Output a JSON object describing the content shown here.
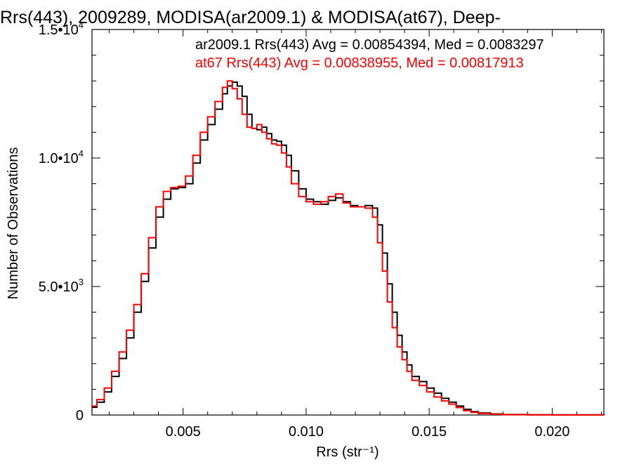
{
  "chart_data": {
    "type": "line",
    "step": true,
    "title": "Rrs(443), 2009289, MODISA(ar2009.1) & MODISA(at67), Deep-",
    "xlabel": "Rrs (str⁻¹)",
    "ylabel": "Number of Observations",
    "xlim": [
      0.0013,
      0.0221
    ],
    "ylim": [
      0,
      15000
    ],
    "xticks": [
      0.005,
      0.01,
      0.015,
      0.02
    ],
    "xtick_labels": [
      "0.005",
      "0.010",
      "0.015",
      "0.020"
    ],
    "ytick_labels": [
      {
        "value": 0,
        "label": "0"
      },
      {
        "value": 5000,
        "label": "5.0•10",
        "sup": "3"
      },
      {
        "value": 10000,
        "label": "1.0•10",
        "sup": "4"
      },
      {
        "value": 15000,
        "label": "1.5•10",
        "sup": "4"
      }
    ],
    "grid": false,
    "legend_position": "top-right",
    "series": [
      {
        "name": "ar2009.1 Rrs(443) Avg = 0.00854394, Med = 0.0083297",
        "color": "#000000",
        "x": [
          0.0013,
          0.0015,
          0.0018,
          0.0021,
          0.0024,
          0.0027,
          0.003,
          0.0033,
          0.0036,
          0.0039,
          0.0042,
          0.0045,
          0.0048,
          0.0051,
          0.0054,
          0.0057,
          0.006,
          0.0063,
          0.0066,
          0.0068,
          0.007,
          0.0072,
          0.0074,
          0.0076,
          0.0078,
          0.008,
          0.0082,
          0.0084,
          0.0086,
          0.0088,
          0.009,
          0.0092,
          0.0094,
          0.0097,
          0.01,
          0.0103,
          0.0106,
          0.0109,
          0.0112,
          0.0115,
          0.0118,
          0.0121,
          0.0124,
          0.0127,
          0.0129,
          0.0131,
          0.0133,
          0.0135,
          0.0137,
          0.0139,
          0.0141,
          0.0143,
          0.0146,
          0.0149,
          0.0152,
          0.0155,
          0.0158,
          0.0161,
          0.0164,
          0.0167,
          0.017,
          0.0175,
          0.018,
          0.019,
          0.02,
          0.0221
        ],
        "y": [
          300,
          500,
          900,
          1500,
          2200,
          3000,
          4000,
          5200,
          6500,
          7700,
          8400,
          8800,
          8850,
          9000,
          9800,
          10700,
          11300,
          11900,
          12500,
          12800,
          12950,
          12800,
          12400,
          11700,
          11150,
          11100,
          11200,
          10950,
          10700,
          10650,
          10500,
          10100,
          9500,
          8800,
          8400,
          8300,
          8200,
          8350,
          8450,
          8300,
          8150,
          8100,
          8150,
          8050,
          7400,
          6300,
          5100,
          4000,
          3100,
          2450,
          1950,
          1500,
          1300,
          1050,
          850,
          650,
          500,
          350,
          220,
          130,
          80,
          40,
          20,
          10,
          5,
          3
        ]
      },
      {
        "name": "at67 Rrs(443) Avg = 0.00838955, Med = 0.00817913",
        "color": "#ff0000",
        "x": [
          0.0013,
          0.0015,
          0.0018,
          0.0021,
          0.0024,
          0.0027,
          0.003,
          0.0033,
          0.0036,
          0.0039,
          0.0042,
          0.0045,
          0.0048,
          0.0051,
          0.0054,
          0.0057,
          0.006,
          0.0063,
          0.0066,
          0.0068,
          0.007,
          0.0072,
          0.0074,
          0.0076,
          0.0078,
          0.008,
          0.0082,
          0.0084,
          0.0086,
          0.0088,
          0.009,
          0.0092,
          0.0094,
          0.0097,
          0.01,
          0.0103,
          0.0106,
          0.0109,
          0.0112,
          0.0115,
          0.0118,
          0.0121,
          0.0124,
          0.0127,
          0.0129,
          0.0131,
          0.0133,
          0.0135,
          0.0137,
          0.0139,
          0.0141,
          0.0143,
          0.0146,
          0.0149,
          0.0152,
          0.0155,
          0.0158,
          0.0161,
          0.0164,
          0.0167,
          0.017,
          0.0175,
          0.018,
          0.019,
          0.02,
          0.0221
        ],
        "y": [
          350,
          600,
          1050,
          1700,
          2450,
          3300,
          4300,
          5500,
          6900,
          8100,
          8700,
          8850,
          8900,
          9300,
          10100,
          11000,
          11600,
          12200,
          12750,
          13000,
          12700,
          12300,
          11700,
          11200,
          11150,
          11300,
          11000,
          10750,
          10550,
          10500,
          10200,
          9650,
          9000,
          8500,
          8300,
          8200,
          8300,
          8500,
          8600,
          8250,
          8100,
          8100,
          8050,
          7700,
          6700,
          5600,
          4400,
          3400,
          2650,
          2150,
          1700,
          1350,
          1150,
          900,
          700,
          550,
          420,
          290,
          170,
          100,
          60,
          30,
          15,
          8,
          4,
          2
        ]
      }
    ]
  }
}
